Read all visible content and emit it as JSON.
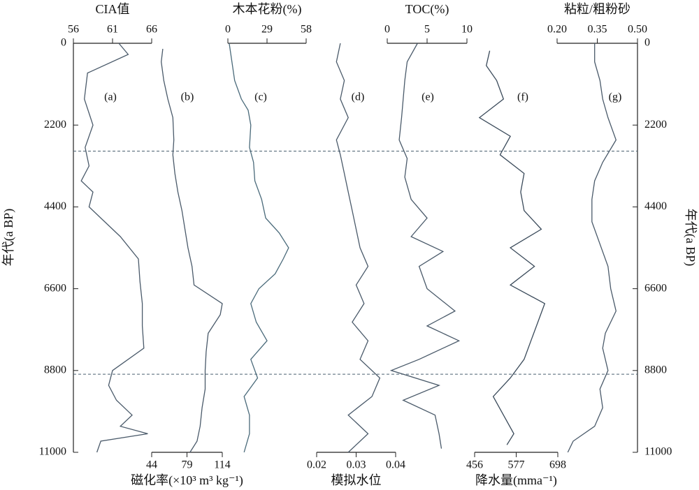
{
  "chart_data": [
    {
      "type": "line",
      "title": "CIA值",
      "label": "(a)",
      "axis": "top",
      "color": "#4a5a6a",
      "xlim": [
        56,
        66
      ],
      "xticks": [
        56,
        61,
        66
      ],
      "ylim": [
        0,
        11000
      ],
      "yticks": [
        0,
        2200,
        4400,
        6600,
        8800,
        11000
      ],
      "ylabel": "年代(a BP)",
      "hlines": [
        2900,
        8900
      ],
      "x": [
        0,
        300,
        800,
        1500,
        2200,
        2800,
        3300,
        3700,
        4000,
        4400,
        4700,
        5200,
        5800,
        6400,
        7000,
        7600,
        8200,
        8800,
        9200,
        9600,
        10000,
        10300,
        10500,
        10700,
        11000
      ],
      "values": [
        61.8,
        63,
        57.8,
        57.4,
        58.5,
        57.5,
        58,
        57,
        58.5,
        58,
        59.5,
        62,
        64.3,
        64.5,
        64.8,
        64.8,
        65,
        61,
        60.5,
        61.5,
        63.5,
        62,
        65.5,
        59.5,
        59
      ]
    },
    {
      "type": "line",
      "title": "磁化率(×10³ m³ kg⁻¹)",
      "label": "(b)",
      "axis": "bottom",
      "color": "#4a5a6a",
      "xlim": [
        44,
        114
      ],
      "xticks": [
        44,
        79,
        114
      ],
      "x": [
        150,
        500,
        1000,
        1500,
        2000,
        2600,
        3000,
        3500,
        4000,
        4500,
        5000,
        5500,
        6000,
        6500,
        7000,
        7300,
        7800,
        8300,
        8800,
        9300,
        9800,
        10300,
        10700,
        11000
      ],
      "values": [
        55,
        53.5,
        56,
        60,
        65,
        66,
        65,
        67,
        70,
        74,
        77,
        80,
        84,
        86,
        114,
        112,
        100,
        98,
        97,
        97,
        94,
        92,
        89,
        82
      ]
    },
    {
      "type": "line",
      "title": "木本花粉(%)",
      "label": "(c)",
      "axis": "top",
      "color": "#4a6a7a",
      "xlim": [
        0,
        58
      ],
      "xticks": [
        0,
        29,
        58
      ],
      "x": [
        0,
        500,
        1000,
        1500,
        1800,
        2200,
        2800,
        3200,
        3700,
        4200,
        4700,
        5100,
        5500,
        5800,
        6200,
        6600,
        7000,
        7500,
        8000,
        8500,
        9000,
        9500,
        10000,
        10500,
        11000
      ],
      "values": [
        1,
        3,
        5,
        10,
        15,
        17,
        16,
        19,
        20,
        25,
        28,
        38,
        45,
        41,
        35,
        23,
        17,
        21,
        29,
        17,
        22,
        12,
        16,
        16,
        12
      ]
    },
    {
      "type": "line",
      "title": "模拟水位",
      "label": "(d)",
      "axis": "bottom",
      "color": "#4a5a6a",
      "xlim": [
        0.02,
        0.04
      ],
      "xticks": [
        0.02,
        0.03,
        0.04
      ],
      "x": [
        0,
        500,
        1000,
        1500,
        2000,
        2600,
        3000,
        3500,
        4000,
        4500,
        5000,
        5500,
        6000,
        6500,
        7000,
        7500,
        8000,
        8500,
        9000,
        9500,
        10000,
        10500,
        11000
      ],
      "values": [
        0.026,
        0.025,
        0.027,
        0.026,
        0.028,
        0.025,
        0.026,
        0.027,
        0.028,
        0.029,
        0.03,
        0.031,
        0.033,
        0.03,
        0.032,
        0.029,
        0.033,
        0.031,
        0.036,
        0.034,
        0.028,
        0.033,
        0.028
      ]
    },
    {
      "type": "line",
      "title": "TOC(%)",
      "label": "(e)",
      "axis": "top",
      "color": "#4a5a6a",
      "xlim": [
        0,
        10
      ],
      "xticks": [
        0,
        5,
        10
      ],
      "x": [
        0,
        500,
        1000,
        1500,
        2000,
        2600,
        3100,
        3600,
        4200,
        4700,
        5200,
        5600,
        6000,
        6600,
        7200,
        7600,
        8000,
        8500,
        8800,
        9200,
        9600,
        10000,
        10500,
        10900
      ],
      "values": [
        3.8,
        2.5,
        2.2,
        2,
        1.8,
        1.5,
        2.5,
        2.2,
        3,
        5,
        3,
        7,
        4,
        5,
        8.5,
        5,
        9,
        4,
        0.5,
        6.5,
        2,
        6,
        6.5,
        6.8
      ]
    },
    {
      "type": "line",
      "title": "降水量(mma⁻¹)",
      "label": "(f)",
      "axis": "bottom",
      "color": "#3a4a5a",
      "xlim": [
        456,
        698
      ],
      "xticks": [
        456,
        577,
        698
      ],
      "x": [
        200,
        600,
        1000,
        1500,
        2000,
        2500,
        3000,
        3500,
        4000,
        4500,
        5000,
        5500,
        6000,
        6500,
        7000,
        7500,
        8000,
        8500,
        9000,
        9500,
        10000,
        10500,
        10800
      ],
      "values": [
        500,
        490,
        520,
        540,
        470,
        560,
        530,
        600,
        590,
        600,
        650,
        560,
        630,
        560,
        660,
        640,
        620,
        600,
        560,
        510,
        540,
        570,
        550
      ]
    },
    {
      "type": "line",
      "title": "粘粒/粗粉砂",
      "label": "(g)",
      "axis": "top",
      "color": "#4a5a6a",
      "xlim": [
        0.2,
        0.5
      ],
      "xticks": [
        {
          "value": 0.2,
          "label": "0.20"
        },
        0.35,
        {
          "value": 0.5,
          "label": "0.50"
        }
      ],
      "yticks": [
        0,
        2200,
        4400,
        6600,
        8800,
        11000
      ],
      "ylabel": "年代(a BP)",
      "x": [
        0,
        500,
        1000,
        1500,
        2000,
        2600,
        3200,
        3700,
        4200,
        4800,
        5400,
        6000,
        6600,
        7200,
        7800,
        8200,
        8800,
        9300,
        9800,
        10300,
        10700,
        11000
      ],
      "values": [
        0.34,
        0.34,
        0.36,
        0.37,
        0.39,
        0.42,
        0.37,
        0.34,
        0.33,
        0.33,
        0.36,
        0.39,
        0.4,
        0.42,
        0.38,
        0.37,
        0.39,
        0.36,
        0.37,
        0.34,
        0.26,
        0.24
      ]
    }
  ]
}
